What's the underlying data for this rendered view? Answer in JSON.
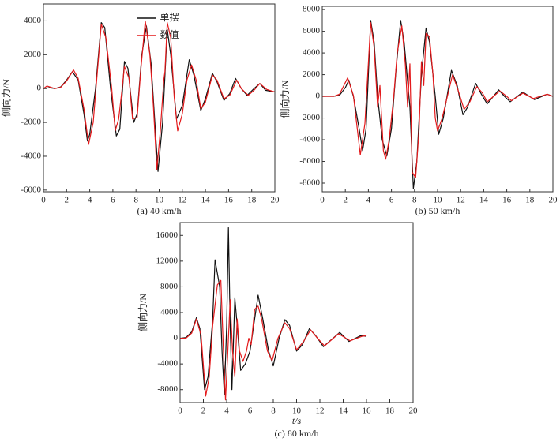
{
  "chart_data": [
    {
      "type": "line",
      "caption": "(a) 40 km/h",
      "ylabel": "侧向力/N",
      "legend": "upper center",
      "xlim": [
        0,
        20
      ],
      "xticks": [
        0,
        2,
        4,
        6,
        8,
        10,
        12,
        14,
        16,
        18,
        20
      ],
      "ylim": [
        -6100,
        5000
      ],
      "yticks": [
        -6000,
        -4000,
        -2000,
        0,
        2000,
        4000
      ],
      "series": [
        {
          "name": "单摆",
          "color": "#111111",
          "x": [
            0,
            0.5,
            1,
            1.5,
            2,
            2.5,
            3,
            3.5,
            3.8,
            4,
            4.5,
            5,
            5.3,
            5.8,
            6.3,
            6.6,
            7,
            7.3,
            7.8,
            8.1,
            8.5,
            8.9,
            9.3,
            9.9,
            10.3,
            10.7,
            11,
            11.5,
            12,
            12.6,
            13,
            13.6,
            14,
            14.6,
            15,
            15.6,
            16.1,
            16.6,
            17.1,
            17.6,
            18.2,
            18.7,
            19.2,
            20
          ],
          "values": [
            0,
            50,
            0,
            100,
            500,
            1000,
            500,
            -1500,
            -3100,
            -2700,
            0,
            3900,
            3600,
            0,
            -2800,
            -2400,
            1600,
            1200,
            -2000,
            -1500,
            2000,
            3700,
            1500,
            -4900,
            -2000,
            3500,
            2000,
            -1800,
            -1000,
            1700,
            800,
            -1300,
            -600,
            900,
            400,
            -700,
            -300,
            600,
            0,
            -400,
            0,
            300,
            -100,
            -200
          ]
        },
        {
          "name": "数值",
          "color": "#e41a1c",
          "x": [
            0,
            0.3,
            1,
            1.5,
            2,
            2.6,
            3,
            3.5,
            3.9,
            4.3,
            4.6,
            5,
            5.4,
            5.9,
            6.2,
            6.5,
            6.8,
            7,
            7.4,
            7.7,
            8.1,
            8.4,
            8.8,
            9.2,
            9.5,
            9.8,
            10.1,
            10.4,
            10.5,
            10.7,
            11,
            11.3,
            11.6,
            12,
            12.4,
            12.8,
            13.2,
            13.6,
            14,
            14.6,
            15,
            15.6,
            16.1,
            16.7,
            17.1,
            17.7,
            18.2,
            18.7,
            19.3,
            20
          ],
          "values": [
            0,
            150,
            0,
            80,
            450,
            1100,
            600,
            -1200,
            -3300,
            -2000,
            500,
            3800,
            3000,
            0,
            -2500,
            -1800,
            0,
            1300,
            600,
            -1800,
            -1700,
            1000,
            4000,
            2000,
            -1000,
            -4800,
            -2500,
            500,
            1000,
            3900,
            3000,
            -500,
            -2500,
            -1500,
            500,
            1400,
            500,
            -1200,
            -800,
            800,
            500,
            -600,
            -400,
            500,
            0,
            -400,
            -100,
            300,
            -50,
            -200
          ]
        }
      ]
    },
    {
      "type": "line",
      "caption": "(b) 50 km/h",
      "ylabel": "侧向力/N",
      "xlim": [
        0,
        20
      ],
      "xticks": [
        0,
        2,
        4,
        6,
        8,
        10,
        12,
        14,
        16,
        18,
        20
      ],
      "ylim": [
        -8800,
        8300
      ],
      "yticks": [
        -8000,
        -6000,
        -4000,
        -2000,
        0,
        2000,
        4000,
        6000,
        8000
      ],
      "series": [
        {
          "name": "单摆",
          "color": "#111111",
          "x": [
            0,
            1,
            1.5,
            2,
            2.3,
            2.7,
            3.2,
            3.5,
            3.8,
            4.2,
            4.5,
            4.8,
            5.2,
            5.6,
            6,
            6.4,
            6.8,
            7.1,
            7.6,
            7.9,
            8.2,
            8.6,
            9,
            9.3,
            9.8,
            10.1,
            10.5,
            11.2,
            11.7,
            12.2,
            12.6,
            13.3,
            13.8,
            14.3,
            15.3,
            15.8,
            16.3,
            17.4,
            18.4,
            19.5,
            20
          ],
          "values": [
            0,
            0,
            100,
            800,
            1500,
            0,
            -3000,
            -5000,
            -3000,
            7000,
            5000,
            0,
            -4000,
            -5500,
            -3000,
            2500,
            7000,
            5000,
            -1000,
            -8500,
            -6000,
            2000,
            6300,
            5000,
            0,
            -3500,
            -2000,
            2400,
            1000,
            -1700,
            -1000,
            1200,
            200,
            -700,
            600,
            0,
            -500,
            400,
            -300,
            200,
            0
          ]
        },
        {
          "name": "数值",
          "color": "#e41a1c",
          "x": [
            0,
            1,
            1.5,
            2.2,
            2.7,
            3.3,
            3.7,
            4.2,
            4.5,
            4.8,
            5,
            5.3,
            5.5,
            5.8,
            6.2,
            6.5,
            6.9,
            7.2,
            7.4,
            7.6,
            7.8,
            8.1,
            8.4,
            8.6,
            8.8,
            9,
            9.3,
            9.6,
            9.8,
            10,
            10.4,
            11.3,
            11.8,
            12.3,
            12.8,
            13.4,
            13.9,
            14.3,
            15.4,
            16,
            16.4,
            17.4,
            18.3,
            19.5,
            20
          ],
          "values": [
            0,
            0,
            200,
            1700,
            100,
            -5400,
            -2500,
            6800,
            4500,
            -1000,
            1000,
            -5000,
            -5800,
            -4000,
            0,
            4000,
            6500,
            3000,
            -1000,
            3000,
            -7000,
            -7500,
            -3000,
            3200,
            1000,
            5800,
            5500,
            2000,
            -2000,
            -3200,
            -2000,
            2000,
            500,
            -1200,
            -500,
            900,
            300,
            -500,
            500,
            0,
            -400,
            300,
            -200,
            200,
            0
          ]
        }
      ]
    },
    {
      "type": "line",
      "caption": "(c) 80 km/h",
      "ylabel": "侧向力/N",
      "xlabel": "t/s",
      "xlim": [
        0,
        20
      ],
      "xticks": [
        0,
        2,
        4,
        6,
        8,
        10,
        12,
        14,
        16,
        18,
        20
      ],
      "ylim": [
        -10000,
        18000
      ],
      "yticks": [
        -8000,
        -4000,
        0,
        4000,
        8000,
        12000,
        16000
      ],
      "series": [
        {
          "name": "单摆",
          "color": "#111111",
          "x": [
            0,
            0.5,
            1,
            1.4,
            1.7,
            2.1,
            2.4,
            2.8,
            3,
            3.4,
            3.6,
            3.8,
            4,
            4.15,
            4.3,
            4.45,
            4.7,
            4.9,
            5.2,
            5.6,
            6,
            6.4,
            6.7,
            7.1,
            7.6,
            8,
            8.5,
            9,
            9.4,
            10,
            10.5,
            11.1,
            11.6,
            12.3,
            13.7,
            14.5,
            15.5,
            16
          ],
          "values": [
            0,
            100,
            1000,
            3200,
            1500,
            -8000,
            -6000,
            3000,
            12200,
            8000,
            -2000,
            -8800,
            2000,
            17200,
            2000,
            -8000,
            6300,
            2000,
            -5000,
            -4000,
            -2000,
            3000,
            6700,
            3000,
            -2000,
            -4300,
            0,
            2900,
            2000,
            -2000,
            -1000,
            1500,
            500,
            -1300,
            900,
            -500,
            400,
            300
          ]
        },
        {
          "name": "数值",
          "color": "#e41a1c",
          "x": [
            0,
            0.5,
            1,
            1.4,
            1.8,
            2.2,
            2.5,
            2.8,
            3.2,
            3.5,
            3.7,
            3.9,
            4.1,
            4.3,
            4.5,
            4.7,
            4.9,
            5.1,
            5.4,
            5.7,
            5.9,
            6.1,
            6.4,
            6.7,
            7,
            7.5,
            7.9,
            8.4,
            9,
            9.4,
            10,
            10.6,
            11.2,
            11.8,
            12.4,
            13.6,
            14.6,
            15.6,
            16
          ],
          "values": [
            0,
            0,
            800,
            3000,
            500,
            -9000,
            -6000,
            2000,
            8300,
            9000,
            -1000,
            -9600,
            -2000,
            6000,
            -2000,
            -6000,
            3000,
            -2000,
            -3600,
            -2000,
            0,
            -1000,
            4500,
            5000,
            3000,
            -2000,
            -3500,
            0,
            2400,
            1500,
            -1800,
            -500,
            1300,
            0,
            -1200,
            700,
            -400,
            300,
            400
          ]
        }
      ]
    }
  ]
}
